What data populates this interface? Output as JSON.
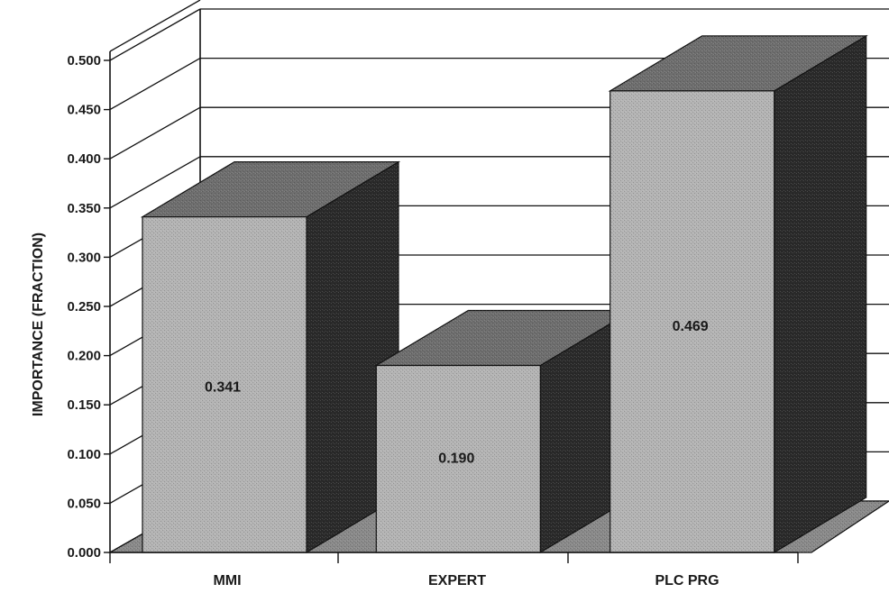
{
  "chart_data": {
    "type": "bar",
    "style": "3d",
    "categories": [
      "MMI",
      "EXPERT",
      "PLC PRG"
    ],
    "values": [
      0.341,
      0.19,
      0.469
    ],
    "data_labels": [
      "0.341",
      "0.190",
      "0.469"
    ],
    "ylabel": "IMPORTANCE (FRACTION)",
    "xlabel": "",
    "ylim": [
      0,
      0.5
    ],
    "yticks": [
      "0.000",
      "0.050",
      "0.100",
      "0.150",
      "0.200",
      "0.250",
      "0.300",
      "0.350",
      "0.400",
      "0.450",
      "0.500"
    ],
    "grid": true,
    "legend": "none",
    "colors": {
      "front": "#b4b4b4",
      "top": "#6e6e6e",
      "side": "#2a2a2a",
      "floor": "#8a8a8a",
      "line": "#111111"
    }
  }
}
